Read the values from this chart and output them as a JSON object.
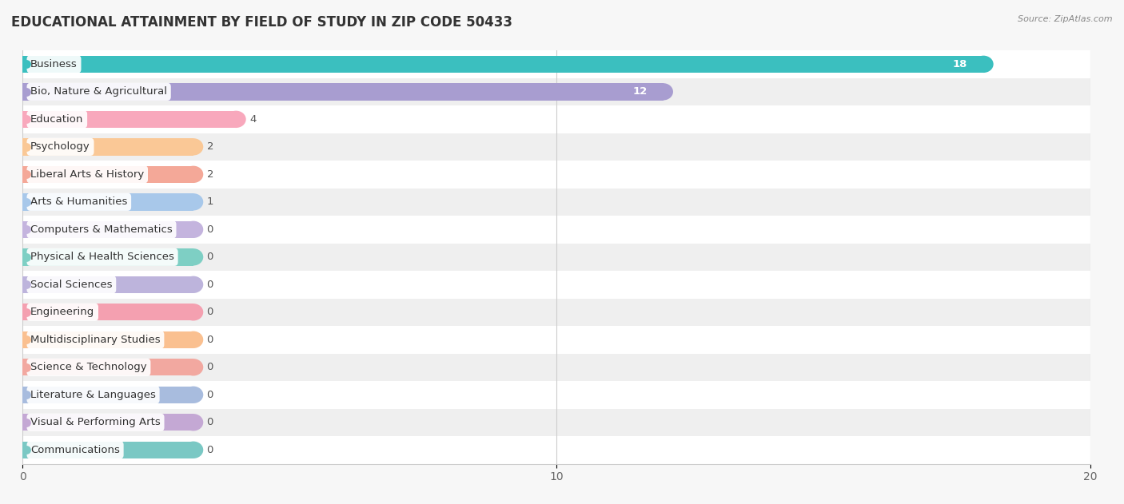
{
  "title": "EDUCATIONAL ATTAINMENT BY FIELD OF STUDY IN ZIP CODE 50433",
  "source": "Source: ZipAtlas.com",
  "categories": [
    "Business",
    "Bio, Nature & Agricultural",
    "Education",
    "Psychology",
    "Liberal Arts & History",
    "Arts & Humanities",
    "Computers & Mathematics",
    "Physical & Health Sciences",
    "Social Sciences",
    "Engineering",
    "Multidisciplinary Studies",
    "Science & Technology",
    "Literature & Languages",
    "Visual & Performing Arts",
    "Communications"
  ],
  "values": [
    18,
    12,
    4,
    2,
    2,
    1,
    0,
    0,
    0,
    0,
    0,
    0,
    0,
    0,
    0
  ],
  "bar_colors": [
    "#3BBFBF",
    "#A89DD0",
    "#F8A8BC",
    "#FAC896",
    "#F4A898",
    "#A8C8EA",
    "#C4B4DE",
    "#7ECFC4",
    "#BDB4DC",
    "#F4A0B0",
    "#FAC090",
    "#F2A8A0",
    "#A8BCDE",
    "#C4A8D4",
    "#7AC8C4"
  ],
  "min_bar_display": 3.2,
  "xlim": [
    0,
    20
  ],
  "xticks": [
    0,
    10,
    20
  ],
  "bar_height": 0.62,
  "background_color": "#f7f7f7",
  "row_colors": [
    "#ffffff",
    "#efefef"
  ],
  "title_fontsize": 12,
  "label_fontsize": 9.5,
  "value_fontsize": 9.5
}
